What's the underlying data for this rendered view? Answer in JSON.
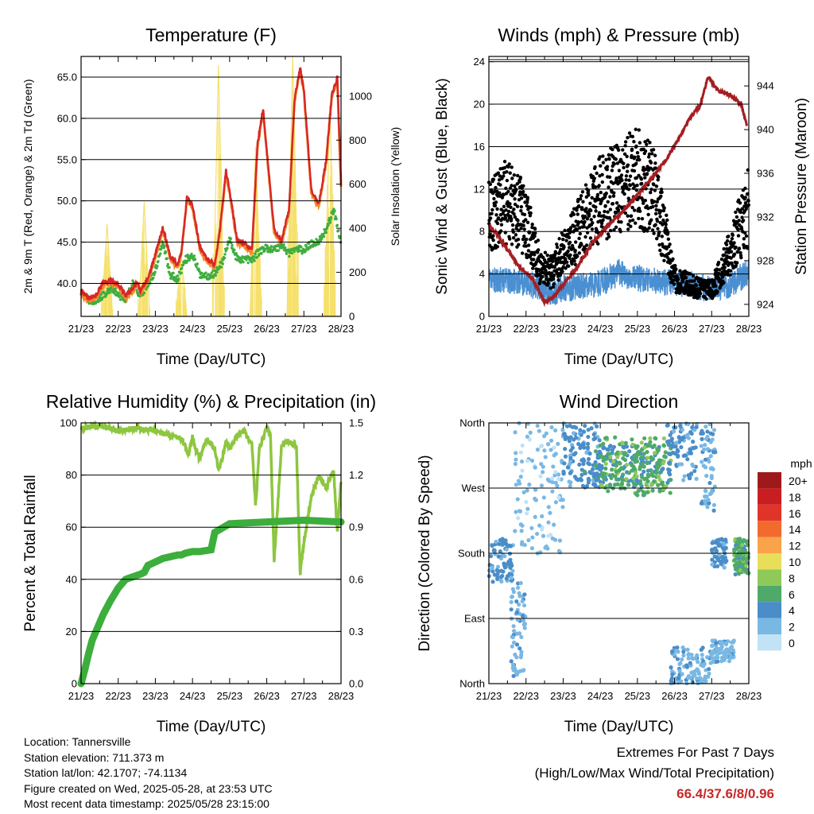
{
  "station_info": {
    "location": "Location: Tannersville",
    "elevation": "Station elevation: 711.373 m",
    "latlon": "Station lat/lon: 42.1707; -74.1134",
    "created": "Figure created on Wed, 2025-05-28, at 23:53 UTC",
    "latest": "Most recent data timestamp: 2025/05/28 23:15:00"
  },
  "extremes": {
    "title": "Extremes For Past 7 Days",
    "subtitle": "(High/Low/Max Wind/Total Precipitation)",
    "values": "66.4/37.6/8/0.96",
    "color": "#c62828"
  },
  "chart_data": [
    {
      "id": "temperature",
      "type": "line",
      "title": "Temperature (F)",
      "xlabel": "Time (Day/UTC)",
      "ylabel": "2m & 9m T (Red, Orange) & 2m Td (Green)",
      "y2label": "Solar Insolation (Yellow)",
      "x_ticks": [
        "21/23",
        "22/23",
        "23/23",
        "24/23",
        "25/23",
        "26/23",
        "27/23",
        "28/23"
      ],
      "xlim": [
        0,
        7
      ],
      "ylim": [
        36,
        67.5
      ],
      "y_ticks": [
        40.0,
        45.0,
        50.0,
        55.0,
        60.0,
        65.0
      ],
      "y_tick_labels": [
        "40.0",
        "45.0",
        "50.0",
        "55.0",
        "60.0",
        "65.0"
      ],
      "y2lim": [
        0,
        1180
      ],
      "y2_ticks": [
        0,
        200,
        400,
        600,
        800,
        1000
      ],
      "y2_tick_labels": [
        "0",
        "200",
        "400",
        "600",
        "800",
        "1000"
      ],
      "grid": true,
      "colors": {
        "t2m": "#d62728",
        "t9m": "#f4892b",
        "td2m": "#3fae3f",
        "solar": "#f5e06a"
      },
      "series": [
        {
          "key": "t2m",
          "x": [
            0,
            0.2,
            0.4,
            0.6,
            0.8,
            1.0,
            1.2,
            1.4,
            1.5,
            1.6,
            1.8,
            2.0,
            2.2,
            2.4,
            2.6,
            2.7,
            2.85,
            3.0,
            3.2,
            3.4,
            3.6,
            3.75,
            3.9,
            4.0,
            4.2,
            4.4,
            4.6,
            4.75,
            4.9,
            5.0,
            5.2,
            5.4,
            5.6,
            5.75,
            5.9,
            6.0,
            6.2,
            6.4,
            6.6,
            6.75,
            6.9,
            7.0
          ],
          "y": [
            39.0,
            38.2,
            38.5,
            40.1,
            40.4,
            39.9,
            38.5,
            39.4,
            40.2,
            39.2,
            40.6,
            43.5,
            46.8,
            43.3,
            42.1,
            43.8,
            50.4,
            49.5,
            44.3,
            42.9,
            42.3,
            47.0,
            53.6,
            51.2,
            45.3,
            44.8,
            44.0,
            56.8,
            61.2,
            56.1,
            46.4,
            45.2,
            49.0,
            62.5,
            66.1,
            63.5,
            51.3,
            49.6,
            55.0,
            62.8,
            64.9,
            52.0
          ]
        },
        {
          "key": "td2m",
          "x": [
            0,
            0.3,
            0.6,
            0.8,
            1.0,
            1.2,
            1.4,
            1.6,
            1.8,
            2.0,
            2.2,
            2.4,
            2.6,
            2.8,
            3.0,
            3.2,
            3.4,
            3.6,
            3.8,
            4.0,
            4.2,
            4.4,
            4.6,
            4.8,
            5.0,
            5.2,
            5.4,
            5.6,
            5.8,
            6.0,
            6.2,
            6.4,
            6.6,
            6.8,
            7.0
          ],
          "y": [
            38.8,
            37.7,
            38.6,
            39.4,
            38.6,
            38.1,
            40.0,
            38.5,
            40.0,
            41.5,
            45.2,
            41.0,
            40.6,
            42.8,
            43.5,
            41.1,
            40.9,
            41.2,
            42.5,
            45.4,
            42.9,
            43.0,
            42.8,
            43.9,
            44.3,
            44.1,
            44.6,
            43.7,
            44.2,
            44.0,
            44.8,
            45.1,
            46.5,
            48.9,
            45.0
          ]
        },
        {
          "key": "solar",
          "x": [
            0,
            0.55,
            0.7,
            0.85,
            1.55,
            1.7,
            1.85,
            2.55,
            2.7,
            2.85,
            3.55,
            3.7,
            3.85,
            4.55,
            4.7,
            4.85,
            5.55,
            5.7,
            5.85,
            6.55,
            6.7,
            6.85,
            7.0
          ],
          "y": [
            0,
            0,
            420,
            0,
            0,
            520,
            0,
            0,
            280,
            0,
            0,
            1140,
            0,
            0,
            770,
            0,
            0,
            1180,
            0,
            0,
            960,
            0,
            0
          ]
        }
      ]
    },
    {
      "id": "winds",
      "type": "scatter",
      "title": "Winds (mph) & Pressure (mb)",
      "xlabel": "Time (Day/UTC)",
      "ylabel": "Sonic Wind & Gust (Blue, Black)",
      "y2label": "Station Pressure (Maroon)",
      "x_ticks": [
        "21/23",
        "22/23",
        "23/23",
        "24/23",
        "25/23",
        "26/23",
        "27/23",
        "28/23"
      ],
      "xlim": [
        0,
        7
      ],
      "ylim": [
        0,
        24.5
      ],
      "y_ticks": [
        0,
        4,
        8,
        12,
        16,
        20,
        24
      ],
      "y_tick_labels": [
        "0",
        "4",
        "8",
        "12",
        "16",
        "20",
        "24"
      ],
      "y2lim": [
        922.9,
        946.7
      ],
      "y2_ticks": [
        924,
        928,
        932,
        936,
        940,
        944
      ],
      "y2_tick_labels": [
        "924",
        "928",
        "932",
        "936",
        "940",
        "944"
      ],
      "grid": true,
      "colors": {
        "wind": "#4a8fd1",
        "gust": "#000000",
        "pressure": "#a41e22"
      },
      "series": [
        {
          "key": "wind",
          "x": [
            0,
            0.5,
            1.0,
            1.4,
            1.7,
            2.0,
            2.5,
            3.0,
            3.5,
            4.0,
            4.5,
            5.0,
            5.5,
            6.0,
            6.5,
            7.0
          ],
          "y": [
            3.6,
            3.4,
            3.2,
            2.6,
            2.2,
            2.6,
            2.8,
            3.2,
            4.1,
            3.6,
            3.3,
            3.2,
            3.0,
            2.5,
            3.0,
            4.2
          ]
        },
        {
          "key": "gust",
          "x": [
            0,
            0.5,
            1.0,
            1.4,
            1.7,
            2.0,
            2.5,
            3.0,
            3.5,
            4.0,
            4.5,
            5.0,
            5.5,
            6.0,
            6.5,
            7.0
          ],
          "y": [
            9.5,
            10.8,
            9.0,
            4.5,
            4.2,
            6.0,
            8.5,
            11.0,
            12.0,
            13.0,
            11.5,
            3.5,
            2.8,
            2.5,
            6.0,
            10.5
          ]
        },
        {
          "key": "pressure",
          "x": [
            0,
            0.2,
            0.5,
            0.8,
            1.2,
            1.5,
            1.7,
            2.0,
            2.4,
            2.8,
            3.2,
            3.6,
            4.0,
            4.4,
            4.8,
            5.1,
            5.4,
            5.7,
            5.9,
            6.2,
            6.5,
            6.8,
            6.95
          ],
          "y": [
            931.2,
            930.5,
            929.0,
            927.5,
            926.2,
            924.2,
            924.5,
            925.8,
            927.5,
            929.7,
            931.2,
            932.5,
            934.0,
            935.6,
            937.4,
            939.1,
            941.0,
            942.3,
            944.8,
            943.5,
            943.2,
            942.3,
            940.3
          ]
        }
      ]
    },
    {
      "id": "rh",
      "type": "line",
      "title": "Relative Humidity (%) & Precipitation (in)",
      "xlabel": "Time (Day/UTC)",
      "ylabel": "Percent & Total Rainfall",
      "x_ticks": [
        "21/23",
        "22/23",
        "23/23",
        "24/23",
        "25/23",
        "26/23",
        "27/23",
        "28/23"
      ],
      "xlim": [
        0,
        7
      ],
      "ylim": [
        0,
        100
      ],
      "y_ticks": [
        0,
        20,
        40,
        60,
        80,
        100
      ],
      "y_tick_labels": [
        "0",
        "20",
        "40",
        "60",
        "80",
        "100"
      ],
      "y2lim": [
        0,
        1.5
      ],
      "y2_ticks": [
        0,
        0.3,
        0.6,
        0.9,
        1.2,
        1.5
      ],
      "y2_tick_labels": [
        "0.0",
        "0.3",
        "0.6",
        "0.9",
        "1.2",
        "1.5"
      ],
      "grid": true,
      "colors": {
        "rh": "#8dc63f",
        "precip": "#3cae3c"
      },
      "series": [
        {
          "key": "rh",
          "x": [
            0,
            0.5,
            1.0,
            1.5,
            2.0,
            2.4,
            2.7,
            2.9,
            3.0,
            3.1,
            3.2,
            3.3,
            3.4,
            3.6,
            3.7,
            3.8,
            3.9,
            4.0,
            4.2,
            4.4,
            4.6,
            4.7,
            4.8,
            5.0,
            5.1,
            5.2,
            5.4,
            5.6,
            5.8,
            5.9,
            6.0,
            6.2,
            6.4,
            6.6,
            6.8,
            6.9,
            7.0
          ],
          "y": [
            98,
            99,
            97,
            98,
            97,
            95,
            94,
            88,
            95,
            89,
            86,
            91,
            94,
            90,
            82,
            86,
            93,
            90,
            95,
            97,
            92,
            68,
            90,
            98,
            95,
            47,
            92,
            93,
            91,
            42,
            54,
            72,
            80,
            75,
            82,
            58,
            78
          ]
        },
        {
          "key": "precip",
          "x": [
            0,
            0.1,
            0.2,
            0.3,
            0.4,
            0.6,
            0.8,
            1.0,
            1.2,
            1.6,
            1.7,
            1.8,
            2.0,
            2.2,
            2.6,
            2.7,
            2.8,
            3.0,
            3.2,
            3.5,
            3.6,
            4.0,
            5.0,
            6.0,
            7.0
          ],
          "y": [
            0.0,
            0.08,
            0.17,
            0.25,
            0.3,
            0.4,
            0.48,
            0.55,
            0.6,
            0.63,
            0.64,
            0.68,
            0.7,
            0.72,
            0.74,
            0.74,
            0.75,
            0.76,
            0.76,
            0.77,
            0.87,
            0.92,
            0.93,
            0.94,
            0.93
          ]
        }
      ]
    },
    {
      "id": "winddir",
      "type": "scatter",
      "title": "Wind Direction",
      "xlabel": "Time (Day/UTC)",
      "ylabel": "Direction (Colored By Speed)",
      "x_ticks": [
        "21/23",
        "22/23",
        "23/23",
        "24/23",
        "25/23",
        "26/23",
        "27/23",
        "28/23"
      ],
      "xlim": [
        0,
        7
      ],
      "ylim": [
        0,
        360
      ],
      "y_ticks": [
        0,
        90,
        180,
        270,
        360
      ],
      "y_tick_labels": [
        "North",
        "East",
        "South",
        "West",
        "North"
      ],
      "grid": true,
      "legend": {
        "title": "mph",
        "placement": "right",
        "levels": [
          "20+",
          "18",
          "16",
          "14",
          "12",
          "10",
          "8",
          "6",
          "4",
          "2",
          "0"
        ],
        "colors": [
          "#9e1a1a",
          "#c81e22",
          "#e03428",
          "#f26a2e",
          "#f9a34a",
          "#e9de5a",
          "#8fc95a",
          "#4ea96a",
          "#4a8dc8",
          "#7ab8e4",
          "#c2e2f6"
        ]
      },
      "clusters": [
        {
          "x": [
            0.0,
            0.65
          ],
          "y": [
            140,
            200
          ],
          "speed": 3
        },
        {
          "x": [
            0.6,
            1.0
          ],
          "y": [
            10,
            140
          ],
          "speed": 2
        },
        {
          "x": [
            0.7,
            2.0
          ],
          "y": [
            180,
            360
          ],
          "speed": 1
        },
        {
          "x": [
            2.0,
            3.0
          ],
          "y": [
            270,
            360
          ],
          "speed": 3
        },
        {
          "x": [
            2.5,
            4.9
          ],
          "y": [
            270,
            330
          ],
          "speed": 4
        },
        {
          "x": [
            3.0,
            4.9
          ],
          "y": [
            260,
            340
          ],
          "speed": 6
        },
        {
          "x": [
            4.8,
            5.6
          ],
          "y": [
            280,
            360
          ],
          "speed": 3
        },
        {
          "x": [
            4.9,
            6.0
          ],
          "y": [
            0,
            50
          ],
          "speed": 2
        },
        {
          "x": [
            5.7,
            6.1
          ],
          "y": [
            230,
            360
          ],
          "speed": 2
        },
        {
          "x": [
            6.0,
            6.6
          ],
          "y": [
            30,
            60
          ],
          "speed": 2
        },
        {
          "x": [
            6.0,
            6.4
          ],
          "y": [
            160,
            200
          ],
          "speed": 3
        },
        {
          "x": [
            6.6,
            7.0
          ],
          "y": [
            150,
            200
          ],
          "speed": 4
        },
        {
          "x": [
            6.6,
            7.0
          ],
          "y": [
            150,
            200
          ],
          "speed": 6
        }
      ]
    }
  ]
}
